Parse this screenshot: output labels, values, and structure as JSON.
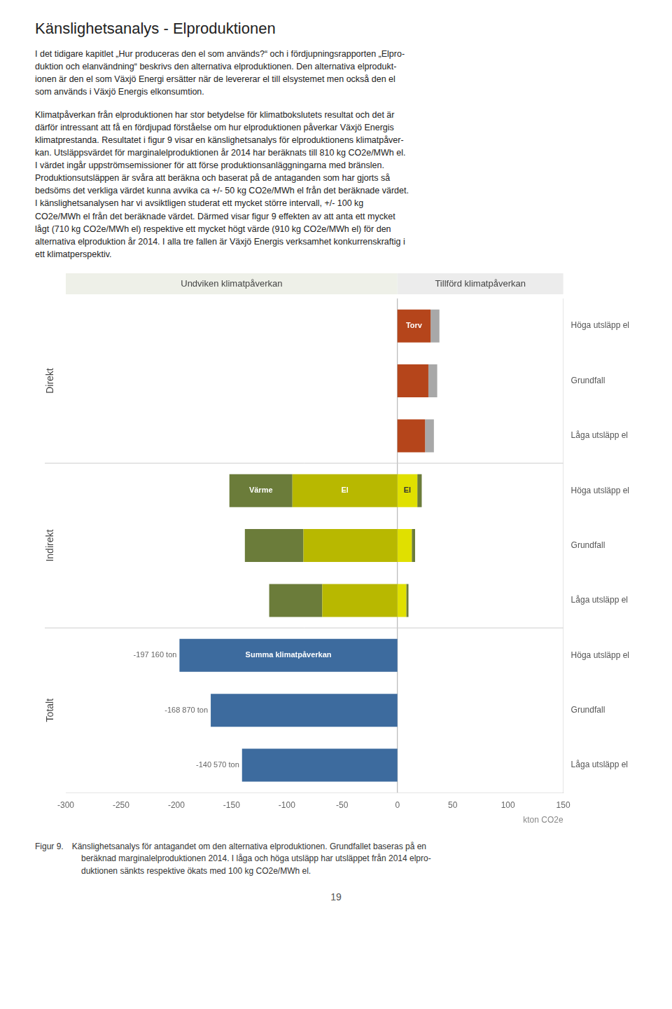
{
  "chart_data": {
    "type": "bar",
    "orientation": "horizontal",
    "stacked": true,
    "grid": false,
    "title": "Känslighetsanalys - Elproduktionen",
    "paragraphs": [
      "I det tidigare kapitlet „Hur produceras den el som används?“ och i fördjupningsrapporten „Elpro-\nduktion och elanvändning“ beskrivs den alternativa elproduktionen. Den alternativa elprodukt-\nionen är den el som Växjö Energi ersätter när de levererar el till elsystemet men också den el\nsom används i Växjö Energis elkonsumtion.",
      "Klimatpåverkan från elproduktionen har stor betydelse för klimatbokslutets resultat och det är\ndärför intressant att få en fördjupad förståelse om hur elproduktionen påverkar Växjö Energis\nklimatprestanda. Resultatet i figur 9 visar en känslighetsanalys för elproduktionens klimatpåver-\nkan. Utsläppsvärdet för marginalelproduktionen år 2014 har beräknats till 810 kg CO2e/MWh el.\nI värdet ingår uppströmsemissioner för att förse produktionsanläggningarna med bränslen.\nProduktionsutsläppen är svåra att beräkna och baserat på de antaganden som har gjorts så\nbedsöms det verkliga värdet kunna avvika ca +/- 50 kg CO2e/MWh el från det beräknade värdet.\nI känslighetsanalysen har vi avsiktligen studerat ett mycket större intervall, +/- 100 kg\nCO2e/MWh el från det beräknade värdet. Därmed visar figur 9 effekten av att anta ett mycket\nlågt (710 kg CO2e/MWh el) respektive ett mycket högt värde (910 kg CO2e/MWh el) för den\nalternativa elproduktion år 2014. I alla tre fallen är Växjö Energis verksamhet konkurrenskraftig i\nett klimatperspektiv."
    ],
    "caption": "Figur 9.  Känslighetsanalys för antagandet om den alternativa elproduktionen. Grundfallet baseras på en\n           beräknad marginalelproduktionen 2014. I låga och höga utsläpp har utsläppet från 2014 elpro-\n           duktionen sänkts respektive ökats med 100 kg CO2e/MWh el.",
    "page_number": "19",
    "header_labels": [
      "Undviken klimatpåverkan",
      "Tillförd klimatpåverkan"
    ],
    "sections": [
      "Direkt",
      "Indirekt",
      "Totalt"
    ],
    "categories": [
      "Höga utsläpp el",
      "Grundfall",
      "Låga utsläpp el",
      "Höga utsläpp el",
      "Grundfall",
      "Låga utsläpp el",
      "Höga utsläpp el",
      "Grundfall",
      "Låga utsläpp el"
    ],
    "xlabel": "kton CO2e",
    "xlim": [
      -300,
      150
    ],
    "xticks": [
      -300,
      -250,
      -200,
      -150,
      -100,
      -50,
      0,
      50,
      100,
      150
    ],
    "series": [
      {
        "name": "Torv",
        "color": "#b5451b",
        "values": [
          30,
          28,
          25,
          null,
          null,
          null,
          null,
          null,
          null
        ]
      },
      {
        "color": "#a8a8a8",
        "values": [
          8,
          8,
          8,
          null,
          null,
          null,
          null,
          null,
          null
        ]
      },
      {
        "name": "El",
        "color": "#b8b800",
        "values": [
          null,
          null,
          null,
          -95,
          -85,
          -68,
          null,
          null,
          null
        ]
      },
      {
        "name": "Värme",
        "color": "#6b7c3a",
        "values": [
          null,
          null,
          null,
          -57,
          -53,
          -48,
          null,
          null,
          null
        ]
      },
      {
        "name": "El",
        "color": "#e0e000",
        "values": [
          null,
          null,
          null,
          18,
          13,
          8,
          null,
          null,
          null
        ]
      },
      {
        "color": "#6b7c3a",
        "values": [
          null,
          null,
          null,
          4,
          3,
          2,
          null,
          null,
          null
        ]
      },
      {
        "name": "Summa klimatpåverkan",
        "color": "#3d6b9e",
        "data_labels": true,
        "values": [
          null,
          null,
          null,
          null,
          null,
          null,
          -197.16,
          -168.87,
          -140.57
        ],
        "value_labels": [
          null,
          null,
          null,
          null,
          null,
          null,
          "-197 160 ton",
          "-168 870 ton",
          "-140 570 ton"
        ]
      }
    ]
  }
}
